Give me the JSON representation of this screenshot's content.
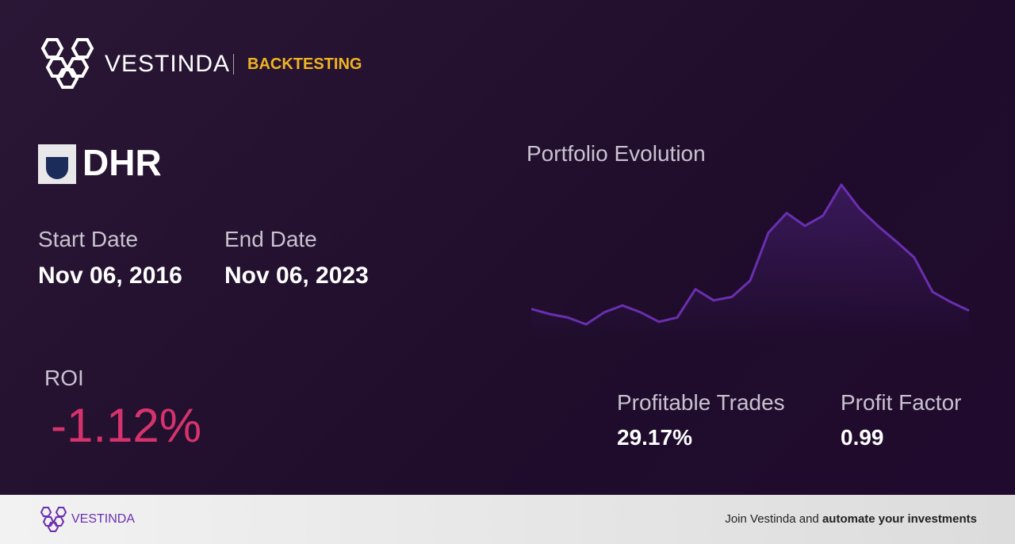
{
  "header": {
    "brand": "VESTINDA",
    "section": "BACKTESTING"
  },
  "ticker": "DHR",
  "start": {
    "label": "Start Date",
    "value": "Nov 06, 2016"
  },
  "end": {
    "label": "End Date",
    "value": "Nov 06, 2023"
  },
  "roi": {
    "label": "ROI",
    "value": "-1.12%"
  },
  "portfolio": {
    "title": "Portfolio Evolution",
    "color": "#6a2fb0",
    "values": [
      35,
      29,
      25,
      17,
      31,
      39,
      31,
      20,
      25,
      58,
      45,
      49,
      68,
      124,
      147,
      132,
      144,
      180,
      152,
      132,
      114,
      95,
      55,
      43,
      33
    ]
  },
  "stats": [
    {
      "label": "Profitable Trades",
      "value": "29.17%"
    },
    {
      "label": "Profit Factor",
      "value": "0.99"
    }
  ],
  "footer": {
    "brand": "VESTINDA",
    "text": "Join Vestinda and",
    "bold": "automate your investments"
  }
}
